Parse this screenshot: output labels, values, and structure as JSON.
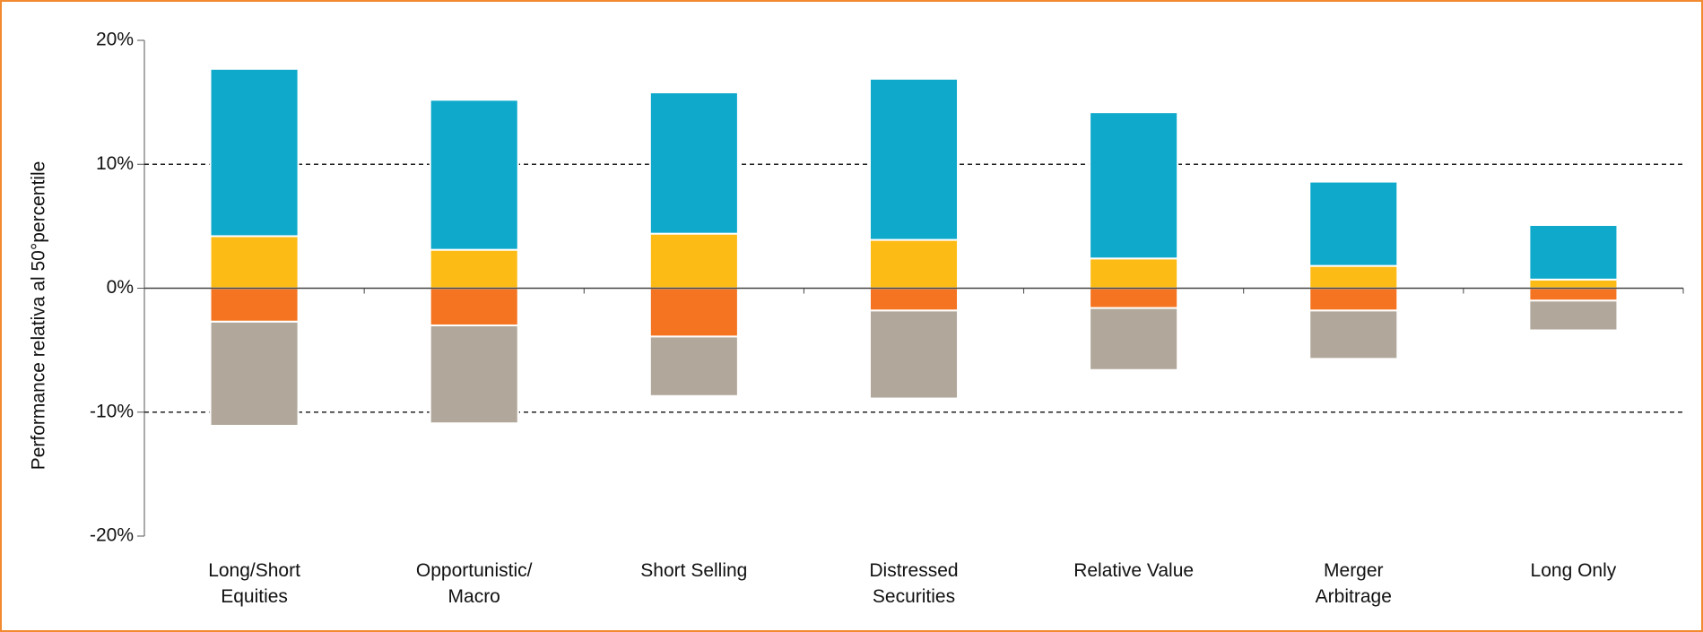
{
  "chart_data": {
    "type": "stacked_bar",
    "y_label": "Performance relativa al 50°percentile",
    "categories": [
      "Long/Short\nEquities",
      "Opportunistic/\nMacro",
      "Short Selling",
      "Distressed\nSecurities",
      "Relative Value",
      "Merger\nArbitrage",
      "Long Only"
    ],
    "series": [
      {
        "color": "#fdbb16",
        "values": [
          4.2,
          3.1,
          4.4,
          3.9,
          2.4,
          1.8,
          0.7
        ]
      },
      {
        "color": "#0ea9cb",
        "values": [
          13.5,
          12.1,
          11.4,
          13.0,
          11.8,
          6.8,
          4.4
        ]
      },
      {
        "color": "#f47421",
        "values": [
          -2.7,
          -3.0,
          -3.9,
          -1.8,
          -1.6,
          -1.8,
          -1.0
        ]
      },
      {
        "color": "#b1a89b",
        "values": [
          -8.4,
          -7.9,
          -4.8,
          -7.1,
          -5.0,
          -3.9,
          -2.4
        ]
      }
    ],
    "ylim": [
      -20,
      20
    ],
    "yticks": [
      {
        "value": -20,
        "label": "-20%"
      },
      {
        "value": -10,
        "label": "-10%"
      },
      {
        "value": 0,
        "label": "0%"
      },
      {
        "value": 10,
        "label": "10%"
      },
      {
        "value": 20,
        "label": "20%"
      }
    ],
    "grid": true,
    "border_color": "#f28a30"
  }
}
